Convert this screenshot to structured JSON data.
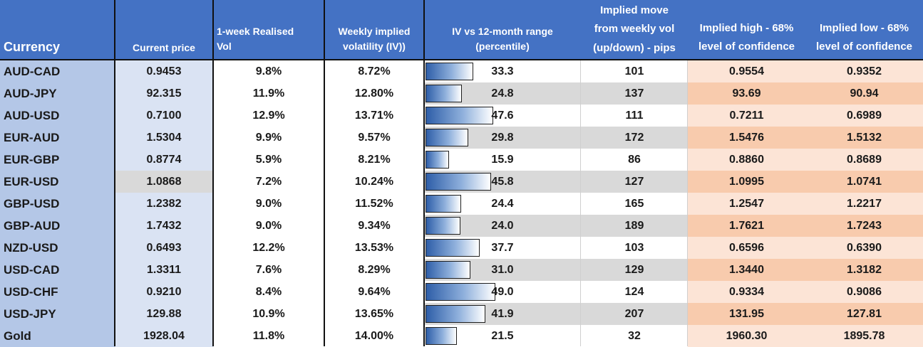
{
  "headers": {
    "currency": "Currency",
    "current_price": "Current price",
    "realised_vol": [
      "1-week Realised",
      "Vol"
    ],
    "implied_vol": [
      "Weekly implied",
      "volatility (IV))"
    ],
    "iv_range": [
      "IV vs  12-month  range",
      "(percentile)"
    ],
    "implied_move": [
      "Implied move",
      "from weekly vol",
      "(up/down) - pips"
    ],
    "implied_high": [
      "Implied high -  68%",
      "level of confidence"
    ],
    "implied_low": [
      "Implied low -  68%",
      "level of confidence"
    ]
  },
  "rows": [
    {
      "currency": "AUD-CAD",
      "price": "0.9453",
      "realised": "9.8%",
      "implied": "8.72%",
      "percentile": "33.3",
      "pct_value": 33.3,
      "pips": "101",
      "high": "0.9554",
      "low": "0.9352"
    },
    {
      "currency": "AUD-JPY",
      "price": "92.315",
      "realised": "11.9%",
      "implied": "12.80%",
      "percentile": "24.8",
      "pct_value": 24.8,
      "pips": "137",
      "high": "93.69",
      "low": "90.94"
    },
    {
      "currency": "AUD-USD",
      "price": "0.7100",
      "realised": "12.9%",
      "implied": "13.71%",
      "percentile": "47.6",
      "pct_value": 47.6,
      "pips": "111",
      "high": "0.7211",
      "low": "0.6989"
    },
    {
      "currency": "EUR-AUD",
      "price": "1.5304",
      "realised": "9.9%",
      "implied": "9.57%",
      "percentile": "29.8",
      "pct_value": 29.8,
      "pips": "172",
      "high": "1.5476",
      "low": "1.5132"
    },
    {
      "currency": "EUR-GBP",
      "price": "0.8774",
      "realised": "5.9%",
      "implied": "8.21%",
      "percentile": "15.9",
      "pct_value": 15.9,
      "pips": "86",
      "high": "0.8860",
      "low": "0.8689"
    },
    {
      "currency": "EUR-USD",
      "price": "1.0868",
      "realised": "7.2%",
      "implied": "10.24%",
      "percentile": "45.8",
      "pct_value": 45.8,
      "pips": "127",
      "high": "1.0995",
      "low": "1.0741"
    },
    {
      "currency": "GBP-USD",
      "price": "1.2382",
      "realised": "9.0%",
      "implied": "11.52%",
      "percentile": "24.4",
      "pct_value": 24.4,
      "pips": "165",
      "high": "1.2547",
      "low": "1.2217"
    },
    {
      "currency": "GBP-AUD",
      "price": "1.7432",
      "realised": "9.0%",
      "implied": "9.34%",
      "percentile": "24.0",
      "pct_value": 24.0,
      "pips": "189",
      "high": "1.7621",
      "low": "1.7243"
    },
    {
      "currency": "NZD-USD",
      "price": "0.6493",
      "realised": "12.2%",
      "implied": "13.53%",
      "percentile": "37.7",
      "pct_value": 37.7,
      "pips": "103",
      "high": "0.6596",
      "low": "0.6390"
    },
    {
      "currency": "USD-CAD",
      "price": "1.3311",
      "realised": "7.6%",
      "implied": "8.29%",
      "percentile": "31.0",
      "pct_value": 31.0,
      "pips": "129",
      "high": "1.3440",
      "low": "1.3182"
    },
    {
      "currency": "USD-CHF",
      "price": "0.9210",
      "realised": "8.4%",
      "implied": "9.64%",
      "percentile": "49.0",
      "pct_value": 49.0,
      "pips": "124",
      "high": "0.9334",
      "low": "0.9086"
    },
    {
      "currency": "USD-JPY",
      "price": "129.88",
      "realised": "10.9%",
      "implied": "13.65%",
      "percentile": "41.9",
      "pct_value": 41.9,
      "pips": "207",
      "high": "131.95",
      "low": "127.81"
    },
    {
      "currency": "Gold",
      "price": "1928.04",
      "realised": "11.8%",
      "implied": "14.00%",
      "percentile": "21.5",
      "pct_value": 21.5,
      "pips": "32",
      "high": "1960.30",
      "low": "1895.78"
    }
  ],
  "colors": {
    "header_bg": "#4472c4",
    "currency_bg": "#b4c7e7",
    "price_bg": "#dae3f3",
    "stripe_gray": "#d9d9d9",
    "peach_light": "#fce4d6",
    "peach_dark": "#f8cbad",
    "bar_fill": "#2e5ea8"
  }
}
